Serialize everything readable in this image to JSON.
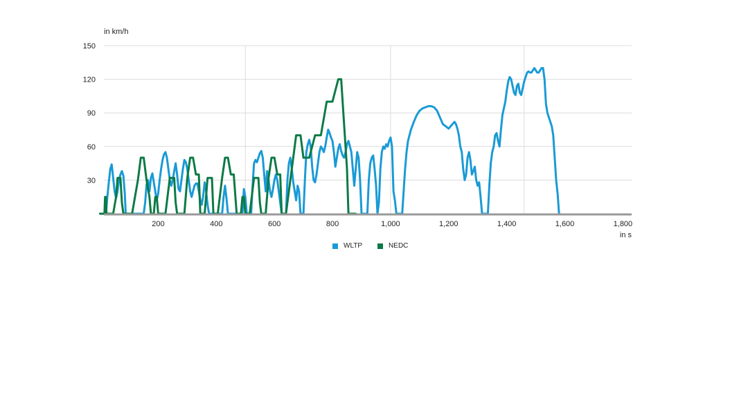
{
  "chart_data": {
    "type": "line",
    "ylabel": "in km/h",
    "xlabel": "in s",
    "ylim": [
      0,
      150
    ],
    "xlim": [
      0,
      1830
    ],
    "y_ticks": [
      "30",
      "60",
      "90",
      "120",
      "150"
    ],
    "x_ticks": [
      "200",
      "400",
      "600",
      "800",
      "1,000",
      "1,200",
      "1,400",
      "1,600",
      "1,800"
    ],
    "grid": true,
    "legend_position": "bottom",
    "series": [
      {
        "name": "WLTP",
        "color": "#1a9ad6",
        "points": [
          [
            0,
            0
          ],
          [
            20,
            0
          ],
          [
            25,
            15
          ],
          [
            30,
            28
          ],
          [
            35,
            40
          ],
          [
            40,
            44
          ],
          [
            45,
            32
          ],
          [
            50,
            20
          ],
          [
            55,
            14
          ],
          [
            60,
            20
          ],
          [
            65,
            30
          ],
          [
            70,
            35
          ],
          [
            75,
            38
          ],
          [
            80,
            34
          ],
          [
            85,
            18
          ],
          [
            88,
            0
          ],
          [
            150,
            0
          ],
          [
            155,
            10
          ],
          [
            160,
            26
          ],
          [
            165,
            30
          ],
          [
            170,
            20
          ],
          [
            175,
            32
          ],
          [
            180,
            36
          ],
          [
            185,
            28
          ],
          [
            190,
            20
          ],
          [
            195,
            12
          ],
          [
            200,
            18
          ],
          [
            205,
            30
          ],
          [
            210,
            40
          ],
          [
            215,
            48
          ],
          [
            220,
            53
          ],
          [
            225,
            55
          ],
          [
            230,
            50
          ],
          [
            235,
            40
          ],
          [
            240,
            30
          ],
          [
            245,
            25
          ],
          [
            250,
            30
          ],
          [
            255,
            38
          ],
          [
            260,
            45
          ],
          [
            265,
            35
          ],
          [
            270,
            22
          ],
          [
            275,
            20
          ],
          [
            280,
            30
          ],
          [
            285,
            40
          ],
          [
            290,
            48
          ],
          [
            295,
            46
          ],
          [
            300,
            40
          ],
          [
            305,
            30
          ],
          [
            310,
            20
          ],
          [
            315,
            15
          ],
          [
            320,
            20
          ],
          [
            325,
            25
          ],
          [
            330,
            27
          ],
          [
            335,
            27
          ],
          [
            340,
            20
          ],
          [
            345,
            12
          ],
          [
            350,
            8
          ],
          [
            355,
            16
          ],
          [
            360,
            28
          ],
          [
            365,
            20
          ],
          [
            370,
            8
          ],
          [
            375,
            0
          ],
          [
            420,
            0
          ],
          [
            425,
            15
          ],
          [
            430,
            25
          ],
          [
            435,
            14
          ],
          [
            440,
            0
          ],
          [
            490,
            0
          ],
          [
            495,
            22
          ],
          [
            500,
            15
          ],
          [
            505,
            0
          ],
          [
            520,
            0
          ],
          [
            525,
            25
          ],
          [
            530,
            45
          ],
          [
            535,
            48
          ],
          [
            540,
            46
          ],
          [
            545,
            50
          ],
          [
            550,
            54
          ],
          [
            555,
            56
          ],
          [
            560,
            50
          ],
          [
            565,
            35
          ],
          [
            570,
            20
          ],
          [
            575,
            38
          ],
          [
            580,
            30
          ],
          [
            585,
            20
          ],
          [
            590,
            15
          ],
          [
            595,
            22
          ],
          [
            600,
            30
          ],
          [
            605,
            35
          ],
          [
            610,
            30
          ],
          [
            615,
            20
          ],
          [
            625,
            0
          ],
          [
            640,
            0
          ],
          [
            645,
            30
          ],
          [
            650,
            45
          ],
          [
            655,
            50
          ],
          [
            660,
            40
          ],
          [
            665,
            28
          ],
          [
            670,
            20
          ],
          [
            675,
            12
          ],
          [
            680,
            25
          ],
          [
            685,
            20
          ],
          [
            690,
            0
          ],
          [
            700,
            0
          ],
          [
            705,
            30
          ],
          [
            710,
            55
          ],
          [
            715,
            62
          ],
          [
            720,
            66
          ],
          [
            725,
            60
          ],
          [
            730,
            42
          ],
          [
            735,
            30
          ],
          [
            740,
            28
          ],
          [
            745,
            35
          ],
          [
            750,
            45
          ],
          [
            755,
            55
          ],
          [
            760,
            60
          ],
          [
            765,
            58
          ],
          [
            770,
            55
          ],
          [
            775,
            60
          ],
          [
            780,
            68
          ],
          [
            785,
            75
          ],
          [
            790,
            72
          ],
          [
            795,
            68
          ],
          [
            800,
            65
          ],
          [
            805,
            55
          ],
          [
            810,
            42
          ],
          [
            815,
            50
          ],
          [
            820,
            58
          ],
          [
            825,
            62
          ],
          [
            830,
            56
          ],
          [
            835,
            52
          ],
          [
            840,
            50
          ],
          [
            845,
            55
          ],
          [
            850,
            62
          ],
          [
            855,
            65
          ],
          [
            860,
            60
          ],
          [
            865,
            55
          ],
          [
            870,
            40
          ],
          [
            875,
            25
          ],
          [
            880,
            40
          ],
          [
            885,
            55
          ],
          [
            890,
            50
          ],
          [
            895,
            30
          ],
          [
            900,
            0
          ],
          [
            920,
            0
          ],
          [
            925,
            30
          ],
          [
            930,
            45
          ],
          [
            935,
            50
          ],
          [
            940,
            52
          ],
          [
            945,
            40
          ],
          [
            950,
            25
          ],
          [
            955,
            0
          ],
          [
            960,
            10
          ],
          [
            965,
            40
          ],
          [
            970,
            55
          ],
          [
            975,
            60
          ],
          [
            980,
            58
          ],
          [
            985,
            62
          ],
          [
            990,
            60
          ],
          [
            995,
            65
          ],
          [
            1000,
            68
          ],
          [
            1005,
            60
          ],
          [
            1010,
            20
          ],
          [
            1015,
            12
          ],
          [
            1020,
            0
          ],
          [
            1040,
            0
          ],
          [
            1045,
            20
          ],
          [
            1050,
            40
          ],
          [
            1055,
            55
          ],
          [
            1060,
            65
          ],
          [
            1070,
            75
          ],
          [
            1080,
            82
          ],
          [
            1090,
            88
          ],
          [
            1100,
            92
          ],
          [
            1110,
            94
          ],
          [
            1120,
            95
          ],
          [
            1130,
            96
          ],
          [
            1140,
            96
          ],
          [
            1150,
            95
          ],
          [
            1160,
            92
          ],
          [
            1170,
            86
          ],
          [
            1180,
            80
          ],
          [
            1190,
            78
          ],
          [
            1200,
            76
          ],
          [
            1210,
            79
          ],
          [
            1220,
            82
          ],
          [
            1225,
            80
          ],
          [
            1230,
            76
          ],
          [
            1235,
            70
          ],
          [
            1240,
            60
          ],
          [
            1245,
            55
          ],
          [
            1250,
            40
          ],
          [
            1255,
            30
          ],
          [
            1260,
            35
          ],
          [
            1265,
            50
          ],
          [
            1270,
            55
          ],
          [
            1275,
            48
          ],
          [
            1280,
            35
          ],
          [
            1285,
            38
          ],
          [
            1290,
            42
          ],
          [
            1295,
            30
          ],
          [
            1300,
            25
          ],
          [
            1305,
            28
          ],
          [
            1310,
            15
          ],
          [
            1315,
            0
          ],
          [
            1335,
            0
          ],
          [
            1340,
            25
          ],
          [
            1345,
            45
          ],
          [
            1350,
            55
          ],
          [
            1355,
            60
          ],
          [
            1360,
            70
          ],
          [
            1365,
            72
          ],
          [
            1370,
            65
          ],
          [
            1375,
            60
          ],
          [
            1380,
            75
          ],
          [
            1385,
            88
          ],
          [
            1390,
            94
          ],
          [
            1395,
            100
          ],
          [
            1400,
            110
          ],
          [
            1405,
            118
          ],
          [
            1410,
            122
          ],
          [
            1415,
            120
          ],
          [
            1420,
            114
          ],
          [
            1425,
            108
          ],
          [
            1430,
            106
          ],
          [
            1435,
            114
          ],
          [
            1440,
            116
          ],
          [
            1445,
            108
          ],
          [
            1450,
            106
          ],
          [
            1455,
            112
          ],
          [
            1460,
            118
          ],
          [
            1465,
            122
          ],
          [
            1470,
            126
          ],
          [
            1475,
            127
          ],
          [
            1480,
            126
          ],
          [
            1485,
            126
          ],
          [
            1490,
            128
          ],
          [
            1495,
            130
          ],
          [
            1500,
            128
          ],
          [
            1505,
            126
          ],
          [
            1510,
            126
          ],
          [
            1515,
            128
          ],
          [
            1520,
            130
          ],
          [
            1525,
            130
          ],
          [
            1530,
            120
          ],
          [
            1535,
            98
          ],
          [
            1540,
            90
          ],
          [
            1545,
            86
          ],
          [
            1550,
            82
          ],
          [
            1555,
            78
          ],
          [
            1560,
            70
          ],
          [
            1565,
            50
          ],
          [
            1570,
            30
          ],
          [
            1575,
            18
          ],
          [
            1580,
            0
          ]
        ]
      },
      {
        "name": "NEDC",
        "color": "#0b7a45",
        "points": [
          [
            0,
            0
          ],
          [
            15,
            0
          ],
          [
            17,
            15
          ],
          [
            20,
            15
          ],
          [
            22,
            0
          ],
          [
            45,
            0
          ],
          [
            55,
            15
          ],
          [
            60,
            32
          ],
          [
            70,
            32
          ],
          [
            75,
            10
          ],
          [
            80,
            0
          ],
          [
            110,
            0
          ],
          [
            130,
            30
          ],
          [
            140,
            50
          ],
          [
            150,
            50
          ],
          [
            160,
            30
          ],
          [
            170,
            15
          ],
          [
            175,
            0
          ],
          [
            185,
            0
          ],
          [
            190,
            15
          ],
          [
            195,
            15
          ],
          [
            200,
            0
          ],
          [
            225,
            0
          ],
          [
            240,
            32
          ],
          [
            255,
            32
          ],
          [
            260,
            10
          ],
          [
            265,
            0
          ],
          [
            290,
            0
          ],
          [
            300,
            32
          ],
          [
            310,
            50
          ],
          [
            320,
            50
          ],
          [
            330,
            35
          ],
          [
            340,
            35
          ],
          [
            345,
            0
          ],
          [
            360,
            0
          ],
          [
            370,
            32
          ],
          [
            385,
            32
          ],
          [
            390,
            0
          ],
          [
            405,
            0
          ],
          [
            420,
            32
          ],
          [
            430,
            50
          ],
          [
            440,
            50
          ],
          [
            450,
            35
          ],
          [
            460,
            35
          ],
          [
            470,
            0
          ],
          [
            485,
            0
          ],
          [
            490,
            15
          ],
          [
            495,
            15
          ],
          [
            500,
            0
          ],
          [
            515,
            0
          ],
          [
            530,
            32
          ],
          [
            545,
            32
          ],
          [
            550,
            10
          ],
          [
            555,
            0
          ],
          [
            570,
            0
          ],
          [
            580,
            32
          ],
          [
            590,
            50
          ],
          [
            600,
            50
          ],
          [
            610,
            35
          ],
          [
            620,
            35
          ],
          [
            625,
            0
          ],
          [
            640,
            0
          ],
          [
            665,
            50
          ],
          [
            675,
            70
          ],
          [
            690,
            70
          ],
          [
            700,
            50
          ],
          [
            720,
            50
          ],
          [
            740,
            70
          ],
          [
            760,
            70
          ],
          [
            780,
            100
          ],
          [
            800,
            100
          ],
          [
            820,
            120
          ],
          [
            830,
            120
          ],
          [
            840,
            80
          ],
          [
            850,
            40
          ],
          [
            855,
            0
          ],
          [
            880,
            0
          ]
        ]
      }
    ]
  }
}
